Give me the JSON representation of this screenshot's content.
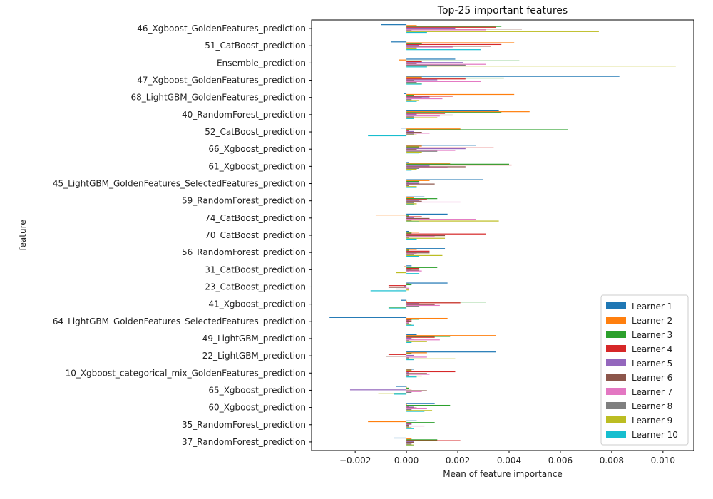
{
  "chart_data": {
    "type": "bar",
    "orientation": "horizontal",
    "title": "Top-25 important features",
    "xlabel": "Mean of feature importance",
    "ylabel": "feature",
    "xlim": [
      -0.0037,
      0.0112
    ],
    "xticks": [
      -0.002,
      0.0,
      0.002,
      0.004,
      0.006,
      0.008,
      0.01
    ],
    "xtick_labels": [
      "−0.002",
      "0.000",
      "0.002",
      "0.004",
      "0.006",
      "0.008",
      "0.010"
    ],
    "grid": false,
    "legend_position": "lower right",
    "categories": [
      "46_Xgboost_GoldenFeatures_prediction",
      "51_CatBoost_prediction",
      "Ensemble_prediction",
      "47_Xgboost_GoldenFeatures_prediction",
      "68_LightGBM_GoldenFeatures_prediction",
      "40_RandomForest_prediction",
      "52_CatBoost_prediction",
      "66_Xgboost_prediction",
      "61_Xgboost_prediction",
      "45_LightGBM_GoldenFeatures_SelectedFeatures_prediction",
      "59_RandomForest_prediction",
      "74_CatBoost_prediction",
      "70_CatBoost_prediction",
      "56_RandomForest_prediction",
      "31_CatBoost_prediction",
      "23_CatBoost_prediction",
      "41_Xgboost_prediction",
      "64_LightGBM_GoldenFeatures_SelectedFeatures_prediction",
      "49_LightGBM_prediction",
      "22_LightGBM_prediction",
      "10_Xgboost_categorical_mix_GoldenFeatures_prediction",
      "65_Xgboost_prediction",
      "60_Xgboost_prediction",
      "35_RandomForest_prediction",
      "37_RandomForest_prediction"
    ],
    "series": [
      {
        "name": "Learner 1",
        "color": "#1f77b4",
        "values": [
          -0.001,
          -0.0006,
          0.0019,
          0.0083,
          -0.0001,
          0.0036,
          -0.0002,
          0.0027,
          0.0001,
          0.003,
          0.0007,
          0.0016,
          0.0001,
          0.0015,
          0.0002,
          0.0016,
          -0.0002,
          -0.003,
          0.0004,
          0.0035,
          0.0003,
          -0.0004,
          0.0011,
          0.0004,
          -0.0005
        ]
      },
      {
        "name": "Learner 2",
        "color": "#ff7f0e",
        "values": [
          0.0004,
          0.0042,
          -0.0003,
          0.0006,
          0.0042,
          0.0048,
          0.0021,
          0.0006,
          0.0017,
          0.0009,
          0.0003,
          -0.0012,
          0.0005,
          0.0004,
          -0.0001,
          0.0001,
          0.0,
          0.0016,
          0.0035,
          0.0008,
          0.0002,
          0.0,
          0.0,
          -0.0015,
          0.0002
        ]
      },
      {
        "name": "Learner 3",
        "color": "#2ca02c",
        "values": [
          0.0037,
          0.0006,
          0.0044,
          0.0038,
          0.0003,
          0.0037,
          0.0063,
          0.0005,
          0.004,
          0.0005,
          0.0012,
          0.0001,
          0.0002,
          0.0001,
          0.0012,
          0.0002,
          0.0031,
          0.0005,
          0.0017,
          0.0002,
          0.0002,
          0.0001,
          0.0017,
          0.0011,
          0.0012
        ]
      },
      {
        "name": "Learner 4",
        "color": "#d62728",
        "values": [
          0.0035,
          0.0037,
          0.0006,
          0.0023,
          0.0018,
          0.0015,
          0.0001,
          0.0034,
          0.0041,
          0.0001,
          0.0008,
          0.0006,
          0.0031,
          0.0009,
          0.0005,
          -0.0007,
          0.0021,
          0.0002,
          0.0011,
          -0.0007,
          0.0019,
          0.0002,
          0.0001,
          0.0002,
          0.0021
        ]
      },
      {
        "name": "Learner 5",
        "color": "#9467bd",
        "values": [
          0.0019,
          0.0005,
          0.0022,
          0.0012,
          0.0009,
          0.0004,
          0.0003,
          0.0023,
          0.0009,
          0.0005,
          0.0005,
          0.0003,
          0.0002,
          0.0009,
          0.0002,
          -0.0001,
          0.0005,
          0.0001,
          0.0002,
          0.0003,
          0.0001,
          -0.0022,
          0.0003,
          0.0002,
          0.0003
        ]
      },
      {
        "name": "Learner 6",
        "color": "#8c564b",
        "values": [
          0.0045,
          0.0033,
          0.0004,
          0.0003,
          0.0006,
          0.0018,
          0.0006,
          0.0004,
          0.0023,
          0.0011,
          0.0006,
          0.0009,
          0.0015,
          0.0009,
          0.0005,
          -0.0007,
          0.0011,
          0.0002,
          0.0003,
          -0.0008,
          0.0008,
          0.0008,
          0.0004,
          0.0001,
          0.0003
        ]
      },
      {
        "name": "Learner 7",
        "color": "#e377c2",
        "values": [
          0.0031,
          0.0018,
          0.0031,
          0.0029,
          0.0014,
          0.0013,
          0.0009,
          0.0019,
          0.0016,
          0.0003,
          0.0021,
          0.0027,
          0.0011,
          0.0004,
          0.0006,
          0.0001,
          0.0013,
          0.0001,
          0.0013,
          0.0008,
          0.0009,
          0.0006,
          0.0008,
          0.0007,
          0.0002
        ]
      },
      {
        "name": "Learner 8",
        "color": "#7f7f7f",
        "values": [
          0.0002,
          0.0004,
          0.0023,
          0.0004,
          0.0002,
          0.0003,
          0.0003,
          0.0012,
          0.0005,
          0.0001,
          0.0003,
          0.0002,
          0.0001,
          0.0003,
          0.0001,
          -0.0004,
          0.0005,
          0.0001,
          0.0001,
          0.0001,
          0.0001,
          0.0002,
          0.0002,
          0.0001,
          0.0002
        ]
      },
      {
        "name": "Learner 9",
        "color": "#bcbd22",
        "values": [
          0.0075,
          0.0004,
          0.0105,
          0.0006,
          0.0005,
          0.0012,
          0.0004,
          0.0006,
          0.0004,
          0.0004,
          0.0004,
          0.0036,
          0.0015,
          0.0014,
          -0.0004,
          0.0001,
          -0.0007,
          0.0002,
          0.0008,
          0.0019,
          0.0006,
          -0.0011,
          0.001,
          0.0002,
          0.0003
        ]
      },
      {
        "name": "Learner 10",
        "color": "#17becf",
        "values": [
          0.0008,
          0.0029,
          0.0008,
          0.0006,
          0.0004,
          0.0003,
          -0.0015,
          0.0005,
          0.0002,
          0.0004,
          0.0003,
          0.0005,
          0.0004,
          0.0005,
          0.0005,
          -0.0014,
          -0.0007,
          0.0003,
          0.0002,
          0.0003,
          0.0004,
          -0.0005,
          0.0007,
          0.0003,
          0.0003
        ]
      }
    ]
  }
}
